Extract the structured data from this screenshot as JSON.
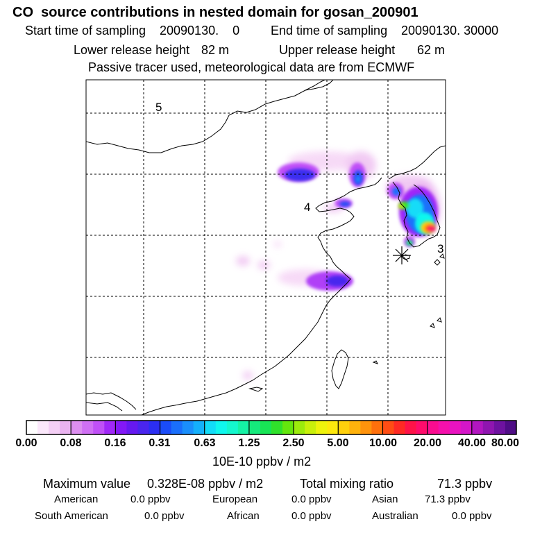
{
  "header": {
    "title": "CO  source contributions in nested domain for gosan_200901",
    "start_label": "Start time of sampling",
    "start_value": "20090130.    0",
    "end_label": "End time of sampling",
    "end_value": "20090130. 30000",
    "lower_label": "Lower release height",
    "lower_value": "82 m",
    "upper_label": "Upper release height",
    "upper_value": "62 m",
    "note": "Passive tracer used, meteorological data are from ECMWF"
  },
  "map": {
    "grid_labels": [
      "5",
      "4",
      "3"
    ],
    "receptor_marker": "asterisk-icon"
  },
  "colorbar": {
    "labels": [
      "0.00",
      "0.08",
      "0.16",
      "0.31",
      "0.63",
      "1.25",
      "2.50",
      "5.00",
      "10.00",
      "20.00",
      "40.00",
      "80.00"
    ],
    "unit": "10E-10 ppbv / m2",
    "colors": [
      "#ffffff",
      "#fbe8fb",
      "#f4cff5",
      "#eab3f0",
      "#dd8ff0",
      "#d070f4",
      "#c050f7",
      "#a028f8",
      "#8318f6",
      "#6619f0",
      "#4a25ee",
      "#2b2ef2",
      "#1a4cf8",
      "#1a6ffb",
      "#1a8ffb",
      "#14b0fb",
      "#12dcf8",
      "#0ff7ee",
      "#14f7ce",
      "#15f2a5",
      "#15ea7c",
      "#18e455",
      "#30e12b",
      "#64e60d",
      "#9ceb0c",
      "#c9f00b",
      "#eef30c",
      "#fde80d",
      "#ffd00c",
      "#ffb20c",
      "#ff930c",
      "#ff700c",
      "#ff4d14",
      "#ff2a24",
      "#ff1348",
      "#ff0c6c",
      "#fb0c90",
      "#f510ac",
      "#e913c0",
      "#d416c8",
      "#b216c0",
      "#8f15b0",
      "#6e12a0",
      "#4f0d86"
    ]
  },
  "summary": {
    "max_label": "Maximum value",
    "max_value": "0.328E-08 ppbv / m2",
    "total_label": "Total mixing ratio",
    "total_value": "71.3 ppbv",
    "regions": [
      {
        "name": "American",
        "value": "0.0 ppbv"
      },
      {
        "name": "European",
        "value": "0.0 ppbv"
      },
      {
        "name": "Asian",
        "value": "71.3 ppbv"
      },
      {
        "name": "South American",
        "value": "0.0 ppbv"
      },
      {
        "name": "African",
        "value": "0.0 ppbv"
      },
      {
        "name": "Australian",
        "value": "0.0 ppbv"
      }
    ]
  }
}
